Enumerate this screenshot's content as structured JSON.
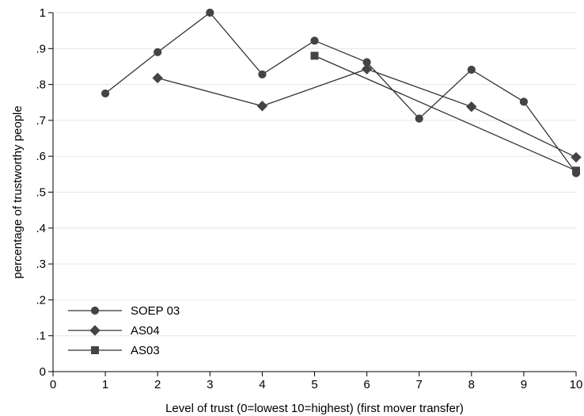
{
  "chart_data": {
    "type": "line",
    "title": "",
    "xlabel": "Level of trust (0=lowest 10=highest) (first mover transfer)",
    "ylabel": "percentage of trustworthy people",
    "xlim": [
      0,
      10
    ],
    "ylim": [
      0,
      1
    ],
    "xticks": [
      0,
      1,
      2,
      3,
      4,
      5,
      6,
      7,
      8,
      9,
      10
    ],
    "yticks": [
      0,
      0.1,
      0.2,
      0.3,
      0.4,
      0.5,
      0.6,
      0.7,
      0.8,
      0.9,
      1
    ],
    "ytick_labels": [
      "0",
      ".1",
      ".2",
      ".3",
      ".4",
      ".5",
      ".6",
      ".7",
      ".8",
      ".9",
      "1"
    ],
    "xtick_labels": [
      "0",
      "1",
      "2",
      "3",
      "4",
      "5",
      "6",
      "7",
      "8",
      "9",
      "10"
    ],
    "grid": true,
    "legend_position": "bottom-left",
    "series": [
      {
        "name": "SOEP 03",
        "marker": "circle",
        "x": [
          1,
          2,
          3,
          4,
          5,
          6,
          7,
          8,
          9,
          10
        ],
        "y": [
          0.775,
          0.89,
          1.0,
          0.828,
          0.922,
          0.862,
          0.705,
          0.841,
          0.752,
          0.553
        ]
      },
      {
        "name": "AS04",
        "marker": "diamond",
        "x": [
          2,
          4,
          6,
          8,
          10
        ],
        "y": [
          0.818,
          0.74,
          0.843,
          0.738,
          0.597
        ]
      },
      {
        "name": "AS03",
        "marker": "square",
        "x": [
          5,
          10
        ],
        "y": [
          0.88,
          0.56
        ]
      }
    ]
  }
}
